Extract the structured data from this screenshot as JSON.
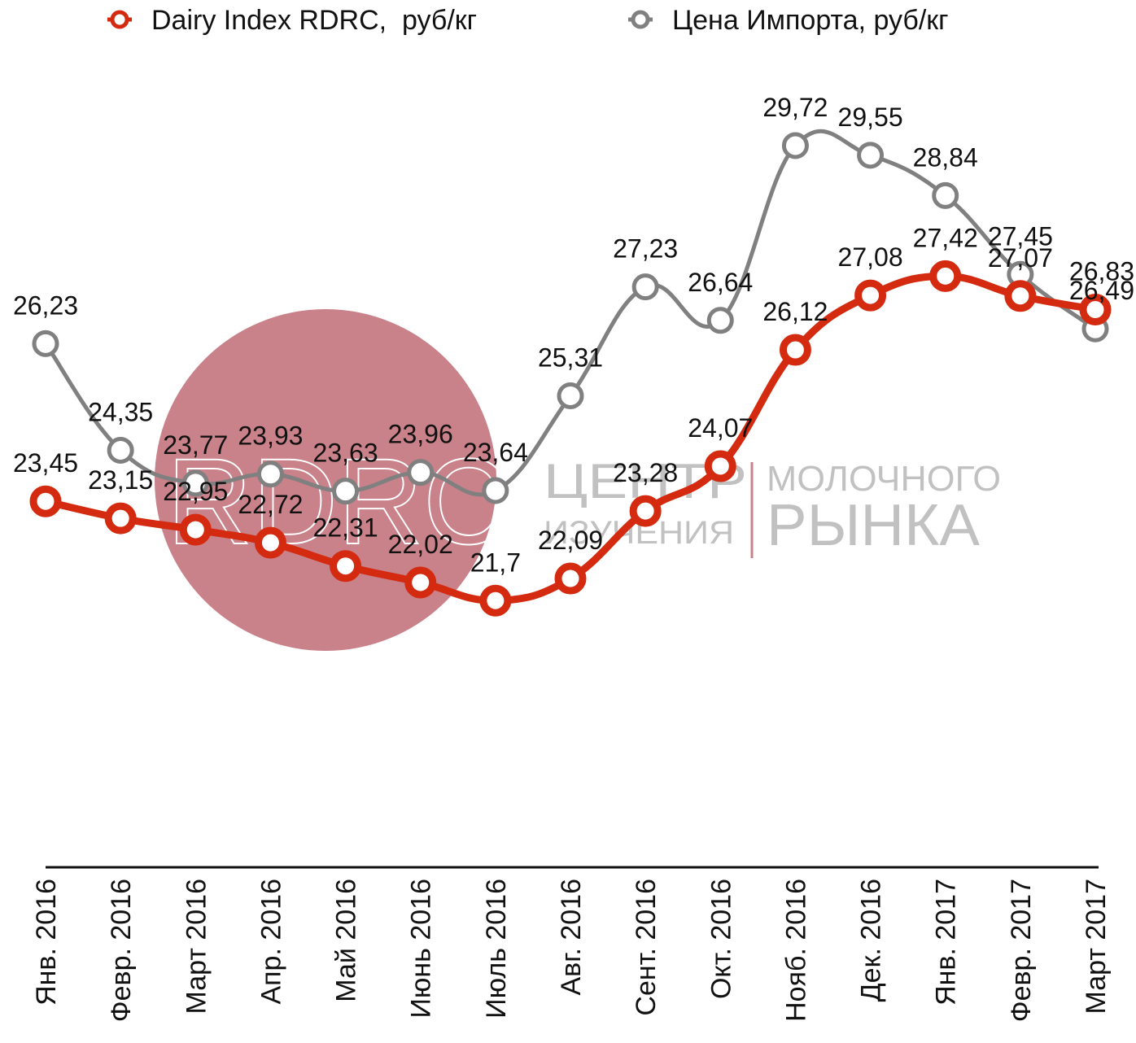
{
  "chart_data": {
    "type": "line",
    "title": "",
    "xlabel": "",
    "ylabel": "",
    "ylim": [
      17,
      32
    ],
    "grid": false,
    "legend_position": "top",
    "categories": [
      "Янв. 2016",
      "Февр. 2016",
      "Март 2016",
      "Апр. 2016",
      "Май 2016",
      "Июнь 2016",
      "Июль 2016",
      "Авг. 2016",
      "Сент. 2016",
      "Окт. 2016",
      "Нояб. 2016",
      "Дек. 2016",
      "Янв. 2017",
      "Февр. 2017",
      "Март 2017"
    ],
    "series": [
      {
        "name": "Dairy Index RDRC,  руб/кг",
        "color": "#d42a10",
        "values": [
          23.45,
          23.15,
          22.95,
          22.72,
          22.31,
          22.02,
          21.7,
          22.09,
          23.28,
          24.07,
          26.12,
          27.08,
          27.42,
          27.07,
          26.83
        ],
        "labels": [
          "23,45",
          "23,15",
          "22,95",
          "22,72",
          "22,31",
          "22,02",
          "21,7",
          "22,09",
          "23,28",
          "24,07",
          "26,12",
          "27,08",
          "27,42",
          "27,07",
          "26,83"
        ]
      },
      {
        "name": "Цена Импорта, руб/кг",
        "color": "#808080",
        "values": [
          26.23,
          24.35,
          23.77,
          23.93,
          23.63,
          23.96,
          23.64,
          25.31,
          27.23,
          26.64,
          29.72,
          29.55,
          28.84,
          27.45,
          26.49
        ],
        "labels": [
          "26,23",
          "24,35",
          "23,77",
          "23,93",
          "23,63",
          "23,96",
          "23,64",
          "25,31",
          "27,23",
          "26,64",
          "29,72",
          "29,55",
          "28,84",
          "27,45",
          "26,49"
        ]
      }
    ]
  },
  "watermark": {
    "logo_letters": "RDRC",
    "line1_left": "ЦЕНТР",
    "line2_left": "ИЗУЧЕНИЯ",
    "line1_right": "МОЛОЧНОГО",
    "line2_right": "РЫНКА",
    "circle_color": "#c9818a"
  }
}
